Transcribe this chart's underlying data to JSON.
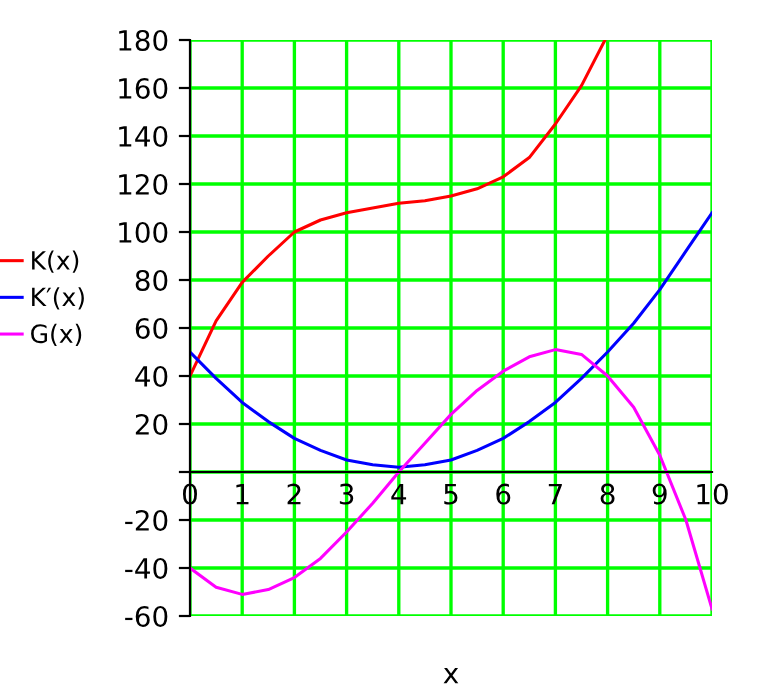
{
  "chart_data": {
    "type": "line",
    "xlabel": "x",
    "xlim": [
      0,
      10
    ],
    "ylim": [
      -60,
      180
    ],
    "xticks": [
      0,
      1,
      2,
      3,
      4,
      5,
      6,
      7,
      8,
      9,
      10
    ],
    "yticks": [
      -60,
      -40,
      -20,
      {
        "value": 0,
        "label": null
      },
      20,
      40,
      60,
      80,
      100,
      120,
      140,
      160,
      180
    ],
    "grid": true,
    "legend": "left",
    "marker": "none",
    "line_style": "solid",
    "series": [
      {
        "name": "K(x)",
        "color": "#ff0000",
        "x": [
          0,
          0.5,
          1,
          1.5,
          2,
          2.5,
          3,
          3.5,
          4,
          4.5,
          5,
          5.5,
          6,
          6.5,
          7,
          7.5,
          7.95
        ],
        "values": [
          40,
          63,
          79,
          90,
          100,
          105,
          108,
          110,
          112,
          113,
          115,
          118,
          123,
          131,
          145,
          161,
          180
        ]
      },
      {
        "name": "K′(x)",
        "color": "#0000ff",
        "x": [
          0,
          0.5,
          1,
          1.5,
          2,
          2.5,
          3,
          3.5,
          4,
          4.5,
          5,
          5.5,
          6,
          6.5,
          7,
          7.5,
          8,
          8.5,
          9,
          9.5,
          10
        ],
        "values": [
          50,
          39,
          29,
          21,
          14,
          9,
          5,
          3,
          2,
          3,
          5,
          9,
          14,
          21,
          29,
          39,
          50,
          62,
          76,
          92,
          108
        ]
      },
      {
        "name": "G(x)",
        "color": "#ff00ff",
        "x": [
          0,
          0.5,
          1,
          1.5,
          2,
          2.5,
          3,
          3.5,
          4,
          4.5,
          5,
          5.5,
          6,
          6.5,
          7,
          7.5,
          8,
          8.5,
          9,
          9.5,
          10
        ],
        "values": [
          -40,
          -48,
          -51,
          -49,
          -44,
          -36,
          -25,
          -13,
          0,
          12,
          24,
          34,
          42,
          48,
          51,
          49,
          40,
          27,
          7,
          -20,
          -57
        ]
      }
    ]
  }
}
